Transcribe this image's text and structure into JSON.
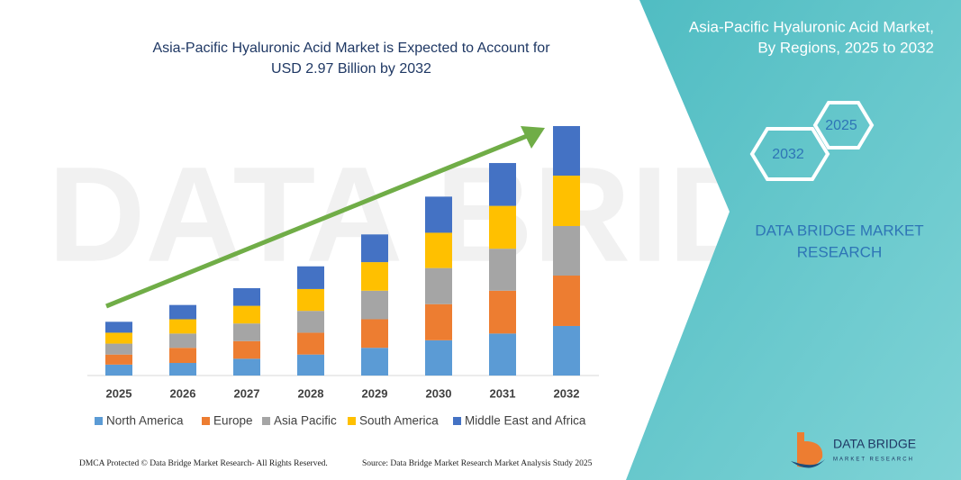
{
  "chart_data": {
    "type": "stacked_bar",
    "title": [
      "Asia-Pacific Hyaluronic Acid Market is Expected to Account for",
      "USD 2.97 Billion by 2032"
    ],
    "categories": [
      "2025",
      "2026",
      "2027",
      "2028",
      "2029",
      "2030",
      "2031",
      "2032"
    ],
    "series": [
      {
        "name": "North America",
        "color": "#5b9bd5",
        "values": [
          0.13,
          0.15,
          0.2,
          0.25,
          0.33,
          0.42,
          0.5,
          0.59
        ]
      },
      {
        "name": "Europe",
        "color": "#ed7d31",
        "values": [
          0.12,
          0.18,
          0.21,
          0.26,
          0.34,
          0.43,
          0.51,
          0.6
        ]
      },
      {
        "name": "Asia Pacific",
        "color": "#a5a5a5",
        "values": [
          0.13,
          0.17,
          0.21,
          0.26,
          0.34,
          0.43,
          0.5,
          0.59
        ]
      },
      {
        "name": "South America",
        "color": "#ffc000",
        "values": [
          0.13,
          0.17,
          0.21,
          0.26,
          0.34,
          0.42,
          0.51,
          0.6
        ]
      },
      {
        "name": "Middle East and Africa",
        "color": "#4472c4",
        "values": [
          0.13,
          0.17,
          0.21,
          0.27,
          0.33,
          0.43,
          0.51,
          0.59
        ]
      }
    ],
    "legend": "bottom"
  },
  "panel": {
    "title": [
      "Asia-Pacific Hyaluronic Acid Market,",
      "By Regions, 2025 to 2032"
    ],
    "hex_labels": [
      "2025",
      "2032"
    ],
    "brand": [
      "DATA BRIDGE MARKET",
      "RESEARCH"
    ],
    "logo": [
      "DATA BRIDGE",
      "MARKET RESEARCH"
    ]
  },
  "footer": {
    "left": "DMCA Protected © Data Bridge Market Research- All Rights Reserved.",
    "right": "Source: Data Bridge Market Research  Market Analysis Study 2025"
  }
}
